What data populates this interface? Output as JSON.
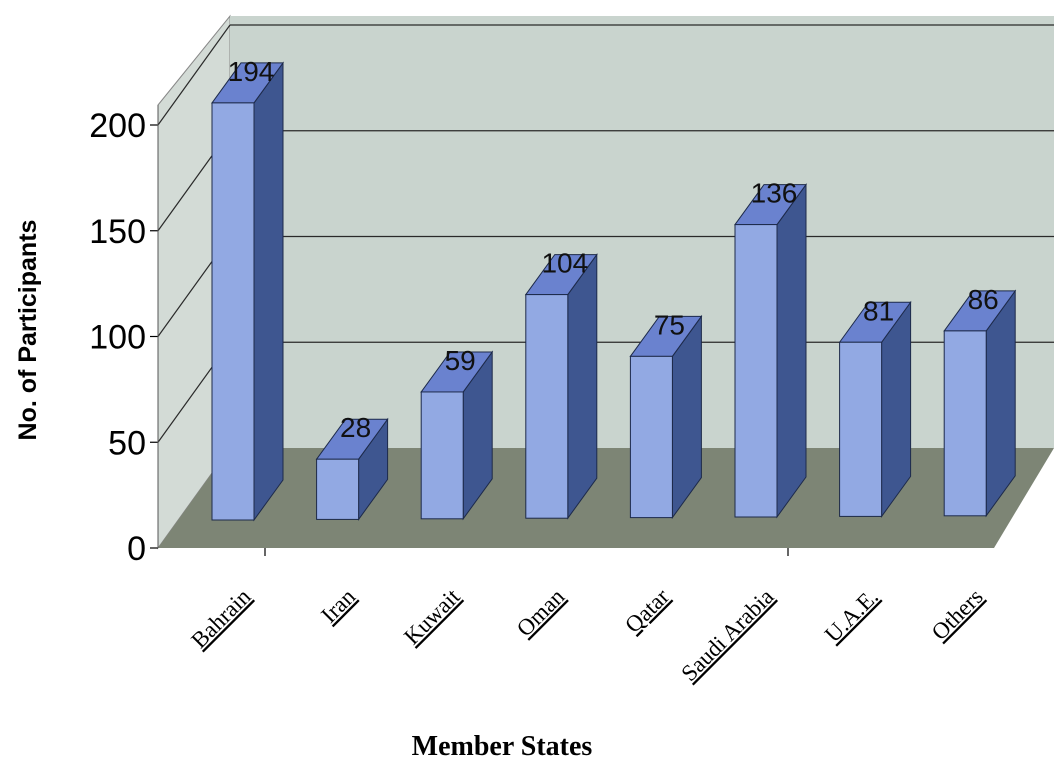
{
  "chart_data": {
    "type": "bar",
    "title": "",
    "xlabel": "Member States",
    "ylabel": "No. of Participants",
    "categories": [
      "Bahrain",
      "Iran",
      "Kuwait",
      "Oman",
      "Qatar",
      "Saudi Arabia",
      "U.A.E.",
      "Others"
    ],
    "values": [
      194,
      28,
      59,
      104,
      75,
      136,
      81,
      86
    ],
    "ylim": [
      0,
      200
    ],
    "yticks": [
      0,
      50,
      100,
      150,
      200
    ],
    "grid": true,
    "legend": "none",
    "colors": {
      "bar_front": "#92a9e3",
      "bar_top": "#6a82cf",
      "bar_side": "#3e5690",
      "back_wall": "#c9d4ce",
      "side_wall": "#d3dbd6",
      "floor": "#7d8575",
      "gridline": "#2a2a2a"
    }
  }
}
